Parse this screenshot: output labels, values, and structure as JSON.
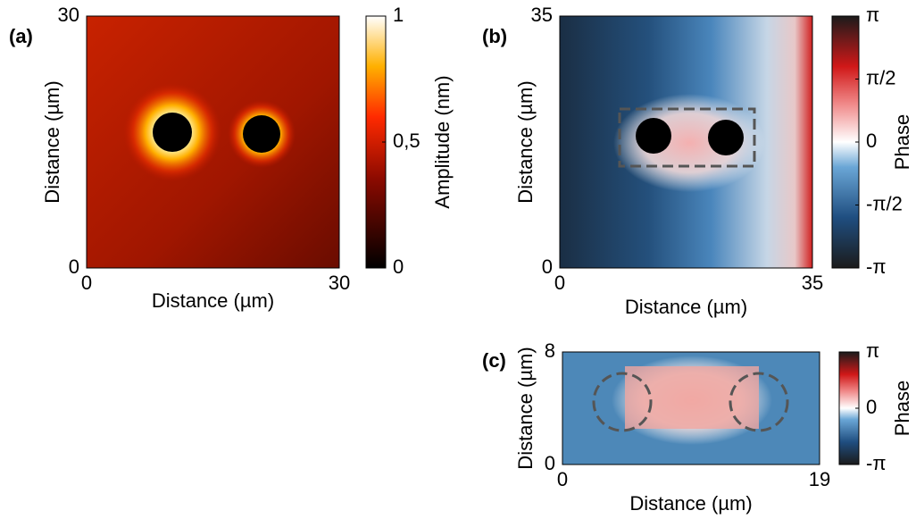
{
  "chart_data": [
    {
      "type": "heatmap",
      "panel_label": "(a)",
      "xlabel": "Distance (µm)",
      "ylabel": "Distance (µm)",
      "xlim": [
        0,
        30
      ],
      "xticks": [
        0,
        30
      ],
      "ylim": [
        0,
        30
      ],
      "yticks": [
        0,
        30
      ],
      "colorbar": {
        "label": "Amplitude (nm)",
        "lim": [
          0,
          1
        ],
        "ticks": [
          0,
          {
            "value": 0.5,
            "label": "0,5"
          },
          1
        ]
      }
    },
    {
      "type": "heatmap",
      "panel_label": "(b)",
      "xlabel": "Distance (µm)",
      "ylabel": "Distance (µm)",
      "xlim": [
        0,
        35
      ],
      "xticks": [
        0,
        35
      ],
      "ylim": [
        0,
        35
      ],
      "yticks": [
        0,
        35
      ],
      "colorbar": {
        "label": "Phase",
        "lim": [
          -3.14159,
          3.14159
        ],
        "ticks": [
          {
            "value": -3.14159,
            "label": "-π"
          },
          {
            "value": -1.5708,
            "label": "-π/2"
          },
          0,
          {
            "value": 1.5708,
            "label": "π/2"
          },
          {
            "value": 3.14159,
            "label": "π"
          }
        ]
      }
    },
    {
      "type": "heatmap",
      "panel_label": "(c)",
      "xlabel": "Distance (µm)",
      "ylabel": "Distance (µm)",
      "xlim": [
        0,
        19
      ],
      "xticks": [
        0,
        19
      ],
      "ylim": [
        0,
        8
      ],
      "yticks": [
        0,
        8
      ],
      "colorbar": {
        "label": "Phase",
        "lim": [
          -3.14159,
          3.14159
        ],
        "ticks": [
          {
            "value": -3.14159,
            "label": "-π"
          },
          0,
          {
            "value": 3.14159,
            "label": "π"
          }
        ]
      }
    }
  ]
}
